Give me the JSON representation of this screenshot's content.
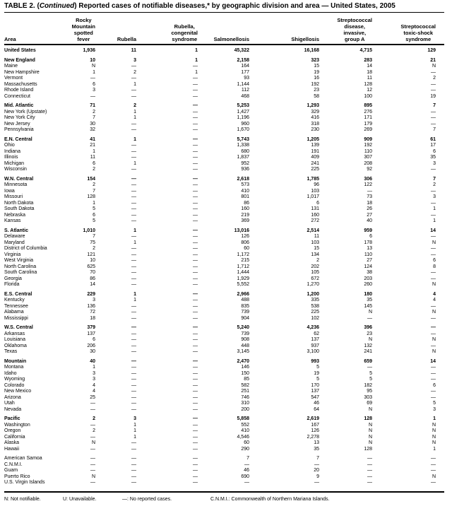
{
  "colors": {
    "text": "#000000",
    "background": "#ffffff",
    "rule": "#000000"
  },
  "title": {
    "part1": "TABLE 2. (",
    "italic": "Continued",
    "part2": ") Reported cases of notifiable diseases,* by geographic division and area — United States, 2005"
  },
  "table": {
    "columns": [
      "Area",
      "Rocky\nMountain\nspotted\nfever",
      "Rubella",
      "Rubella,\ncongenital\nsyndrome",
      "Salmonellosis",
      "Shigellosis",
      "Streptococcal\ndisease,\ninvasive,\ngroup A",
      "Streptococcal\ntoxic-shock\nsyndrome"
    ],
    "rows": [
      {
        "area": "United States",
        "bold": true,
        "values": [
          "1,936",
          "11",
          "1",
          "45,322",
          "16,168",
          "4,715",
          "129"
        ]
      },
      {
        "area": "New England",
        "bold": true,
        "group_start": true,
        "values": [
          "10",
          "3",
          "1",
          "2,158",
          "323",
          "283",
          "21"
        ]
      },
      {
        "area": "Maine",
        "values": [
          "N",
          "—",
          "—",
          "164",
          "15",
          "14",
          "N"
        ]
      },
      {
        "area": "New Hampshire",
        "values": [
          "1",
          "2",
          "1",
          "177",
          "19",
          "18",
          "—"
        ]
      },
      {
        "area": "Vermont",
        "values": [
          "—",
          "—",
          "—",
          "93",
          "16",
          "11",
          "2"
        ]
      },
      {
        "area": "Massachusetts",
        "values": [
          "6",
          "1",
          "—",
          "1,144",
          "192",
          "128",
          "—"
        ]
      },
      {
        "area": "Rhode Island",
        "values": [
          "3",
          "—",
          "—",
          "112",
          "23",
          "12",
          "—"
        ]
      },
      {
        "area": "Connecticut",
        "values": [
          "—",
          "—",
          "—",
          "468",
          "58",
          "100",
          "19"
        ]
      },
      {
        "area": "Mid. Atlantic",
        "bold": true,
        "group_start": true,
        "values": [
          "71",
          "2",
          "—",
          "5,253",
          "1,293",
          "895",
          "7"
        ]
      },
      {
        "area": "New York (Upstate)",
        "values": [
          "2",
          "1",
          "—",
          "1,427",
          "329",
          "276",
          "—"
        ]
      },
      {
        "area": "New York City",
        "values": [
          "7",
          "1",
          "—",
          "1,196",
          "416",
          "171",
          "—"
        ]
      },
      {
        "area": "New Jersey",
        "values": [
          "30",
          "—",
          "—",
          "960",
          "318",
          "179",
          "—"
        ]
      },
      {
        "area": "Pennsylvania",
        "values": [
          "32",
          "—",
          "—",
          "1,670",
          "230",
          "269",
          "7"
        ]
      },
      {
        "area": "E.N. Central",
        "bold": true,
        "group_start": true,
        "values": [
          "41",
          "1",
          "—",
          "5,743",
          "1,205",
          "909",
          "61"
        ]
      },
      {
        "area": "Ohio",
        "values": [
          "21",
          "—",
          "—",
          "1,338",
          "139",
          "192",
          "17"
        ]
      },
      {
        "area": "Indiana",
        "values": [
          "1",
          "—",
          "—",
          "680",
          "191",
          "110",
          "6"
        ]
      },
      {
        "area": "Illinois",
        "values": [
          "11",
          "—",
          "—",
          "1,837",
          "409",
          "307",
          "35"
        ]
      },
      {
        "area": "Michigan",
        "values": [
          "6",
          "1",
          "—",
          "952",
          "241",
          "208",
          "3"
        ]
      },
      {
        "area": "Wisconsin",
        "values": [
          "2",
          "—",
          "—",
          "936",
          "225",
          "92",
          "—"
        ]
      },
      {
        "area": "W.N. Central",
        "bold": true,
        "group_start": true,
        "values": [
          "154",
          "—",
          "—",
          "2,618",
          "1,785",
          "306",
          "7"
        ]
      },
      {
        "area": "Minnesota",
        "values": [
          "2",
          "—",
          "—",
          "573",
          "96",
          "122",
          "2"
        ]
      },
      {
        "area": "Iowa",
        "values": [
          "7",
          "—",
          "—",
          "410",
          "103",
          "—",
          "—"
        ]
      },
      {
        "area": "Missouri",
        "values": [
          "128",
          "—",
          "—",
          "801",
          "1,017",
          "73",
          "3"
        ]
      },
      {
        "area": "North Dakota",
        "values": [
          "1",
          "—",
          "—",
          "86",
          "6",
          "18",
          "—"
        ]
      },
      {
        "area": "South Dakota",
        "values": [
          "5",
          "—",
          "—",
          "160",
          "131",
          "26",
          "1"
        ]
      },
      {
        "area": "Nebraska",
        "values": [
          "6",
          "—",
          "—",
          "219",
          "160",
          "27",
          "—"
        ]
      },
      {
        "area": "Kansas",
        "values": [
          "5",
          "—",
          "—",
          "369",
          "272",
          "40",
          "1"
        ]
      },
      {
        "area": "S. Atlantic",
        "bold": true,
        "group_start": true,
        "values": [
          "1,010",
          "1",
          "—",
          "13,016",
          "2,514",
          "959",
          "14"
        ]
      },
      {
        "area": "Delaware",
        "values": [
          "7",
          "—",
          "—",
          "126",
          "11",
          "6",
          "—"
        ]
      },
      {
        "area": "Maryland",
        "values": [
          "75",
          "1",
          "—",
          "806",
          "103",
          "178",
          "N"
        ]
      },
      {
        "area": "District of Columbia",
        "values": [
          "2",
          "—",
          "—",
          "60",
          "15",
          "13",
          "—"
        ]
      },
      {
        "area": "Virginia",
        "values": [
          "121",
          "—",
          "—",
          "1,172",
          "134",
          "110",
          "—"
        ]
      },
      {
        "area": "West Virginia",
        "values": [
          "10",
          "—",
          "—",
          "215",
          "2",
          "27",
          "6"
        ]
      },
      {
        "area": "North Carolina",
        "values": [
          "625",
          "—",
          "—",
          "1,712",
          "202",
          "124",
          "8"
        ]
      },
      {
        "area": "South Carolina",
        "values": [
          "70",
          "—",
          "—",
          "1,444",
          "105",
          "38",
          "—"
        ]
      },
      {
        "area": "Georgia",
        "values": [
          "86",
          "—",
          "—",
          "1,929",
          "672",
          "203",
          "—"
        ]
      },
      {
        "area": "Florida",
        "values": [
          "14",
          "—",
          "—",
          "5,552",
          "1,270",
          "260",
          "N"
        ]
      },
      {
        "area": "E.S. Central",
        "bold": true,
        "group_start": true,
        "values": [
          "229",
          "1",
          "—",
          "2,966",
          "1,200",
          "180",
          "4"
        ]
      },
      {
        "area": "Kentucky",
        "values": [
          "3",
          "1",
          "—",
          "488",
          "335",
          "35",
          "4"
        ]
      },
      {
        "area": "Tennessee",
        "values": [
          "136",
          "—",
          "—",
          "835",
          "538",
          "145",
          "—"
        ]
      },
      {
        "area": "Alabama",
        "values": [
          "72",
          "—",
          "—",
          "739",
          "225",
          "N",
          "N"
        ]
      },
      {
        "area": "Mississippi",
        "values": [
          "18",
          "—",
          "—",
          "904",
          "102",
          "—",
          "—"
        ]
      },
      {
        "area": "W.S. Central",
        "bold": true,
        "group_start": true,
        "values": [
          "379",
          "—",
          "—",
          "5,240",
          "4,236",
          "396",
          "—"
        ]
      },
      {
        "area": "Arkansas",
        "values": [
          "137",
          "—",
          "—",
          "739",
          "62",
          "23",
          "—"
        ]
      },
      {
        "area": "Louisiana",
        "values": [
          "6",
          "—",
          "—",
          "908",
          "137",
          "N",
          "N"
        ]
      },
      {
        "area": "Oklahoma",
        "values": [
          "206",
          "—",
          "—",
          "448",
          "937",
          "132",
          "—"
        ]
      },
      {
        "area": "Texas",
        "values": [
          "30",
          "—",
          "—",
          "3,145",
          "3,100",
          "241",
          "N"
        ]
      },
      {
        "area": "Mountain",
        "bold": true,
        "group_start": true,
        "values": [
          "40",
          "—",
          "—",
          "2,470",
          "993",
          "659",
          "14"
        ]
      },
      {
        "area": "Montana",
        "values": [
          "1",
          "—",
          "—",
          "146",
          "5",
          "—",
          "—"
        ]
      },
      {
        "area": "Idaho",
        "values": [
          "3",
          "—",
          "—",
          "150",
          "19",
          "5",
          "—"
        ]
      },
      {
        "area": "Wyoming",
        "values": [
          "3",
          "—",
          "—",
          "85",
          "5",
          "5",
          "—"
        ]
      },
      {
        "area": "Colorado",
        "values": [
          "4",
          "—",
          "—",
          "582",
          "170",
          "182",
          "6"
        ]
      },
      {
        "area": "New Mexico",
        "values": [
          "4",
          "—",
          "—",
          "251",
          "137",
          "95",
          "—"
        ]
      },
      {
        "area": "Arizona",
        "values": [
          "25",
          "—",
          "—",
          "746",
          "547",
          "303",
          "—"
        ]
      },
      {
        "area": "Utah",
        "values": [
          "—",
          "—",
          "—",
          "310",
          "46",
          "69",
          "5"
        ]
      },
      {
        "area": "Nevada",
        "values": [
          "—",
          "—",
          "—",
          "200",
          "64",
          "N",
          "3"
        ]
      },
      {
        "area": "Pacific",
        "bold": true,
        "group_start": true,
        "values": [
          "2",
          "3",
          "—",
          "5,858",
          "2,619",
          "128",
          "1"
        ]
      },
      {
        "area": "Washington",
        "values": [
          "—",
          "1",
          "—",
          "552",
          "167",
          "N",
          "N"
        ]
      },
      {
        "area": "Oregon",
        "values": [
          "2",
          "1",
          "—",
          "410",
          "126",
          "N",
          "N"
        ]
      },
      {
        "area": "California",
        "values": [
          "—",
          "1",
          "—",
          "4,546",
          "2,278",
          "N",
          "N"
        ]
      },
      {
        "area": "Alaska",
        "values": [
          "N",
          "—",
          "—",
          "60",
          "13",
          "N",
          "N"
        ]
      },
      {
        "area": "Hawaii",
        "values": [
          "—",
          "—",
          "—",
          "290",
          "35",
          "128",
          "1"
        ]
      },
      {
        "area": "American Samoa",
        "group_start": true,
        "values": [
          "—",
          "—",
          "—",
          "7",
          "7",
          "—",
          "—"
        ]
      },
      {
        "area": "C.N.M.I.",
        "values": [
          "—",
          "—",
          "—",
          "—",
          "—",
          "—",
          "—"
        ]
      },
      {
        "area": "Guam",
        "values": [
          "—",
          "—",
          "—",
          "46",
          "20",
          "—",
          "—"
        ]
      },
      {
        "area": "Puerto Rico",
        "values": [
          "N",
          "—",
          "—",
          "690",
          "9",
          "—",
          "N"
        ]
      },
      {
        "area": "U.S. Virgin Islands",
        "values": [
          "—",
          "—",
          "—",
          "—",
          "—",
          "—",
          "—"
        ]
      }
    ]
  },
  "footnotes": [
    "N: Not notifiable.",
    "U: Unavailable.",
    "—: No reported cases.",
    "C.N.M.I.: Commonwealth of Northern Mariana Islands."
  ]
}
